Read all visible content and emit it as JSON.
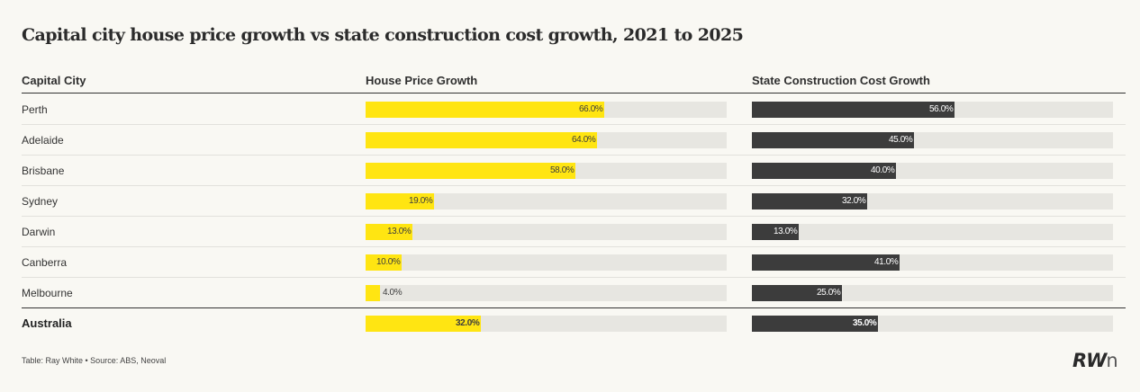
{
  "title": "Capital city house price growth vs state construction cost growth, 2021 to 2025",
  "headers": {
    "city": "Capital City",
    "house": "House Price Growth",
    "cost": "State Construction Cost Growth"
  },
  "colors": {
    "house": "#ffe512",
    "cost": "#3c3c3c",
    "track": "#e7e6e1",
    "background": "#f9f8f3"
  },
  "chart_data": {
    "type": "table",
    "title": "Capital city house price growth vs state construction cost growth, 2021 to 2025",
    "columns": [
      "Capital City",
      "House Price Growth",
      "State Construction Cost Growth"
    ],
    "scale_max": 100,
    "rows": [
      {
        "city": "Perth",
        "house": 66.0,
        "house_label": "66.0%",
        "cost": 56.0,
        "cost_label": "56.0%"
      },
      {
        "city": "Adelaide",
        "house": 64.0,
        "house_label": "64.0%",
        "cost": 45.0,
        "cost_label": "45.0%"
      },
      {
        "city": "Brisbane",
        "house": 58.0,
        "house_label": "58.0%",
        "cost": 40.0,
        "cost_label": "40.0%"
      },
      {
        "city": "Sydney",
        "house": 19.0,
        "house_label": "19.0%",
        "cost": 32.0,
        "cost_label": "32.0%"
      },
      {
        "city": "Darwin",
        "house": 13.0,
        "house_label": "13.0%",
        "cost": 13.0,
        "cost_label": "13.0%"
      },
      {
        "city": "Canberra",
        "house": 10.0,
        "house_label": "10.0%",
        "cost": 41.0,
        "cost_label": "41.0%"
      },
      {
        "city": "Melbourne",
        "house": 4.0,
        "house_label": "4.0%",
        "cost": 25.0,
        "cost_label": "25.0%"
      }
    ],
    "total": {
      "city": "Australia",
      "house": 32.0,
      "house_label": "32.0%",
      "cost": 35.0,
      "cost_label": "35.0%"
    }
  },
  "footer": "Table: Ray White • Source: ABS, Neoval",
  "logo": {
    "main": "RW",
    "suffix": "n"
  }
}
